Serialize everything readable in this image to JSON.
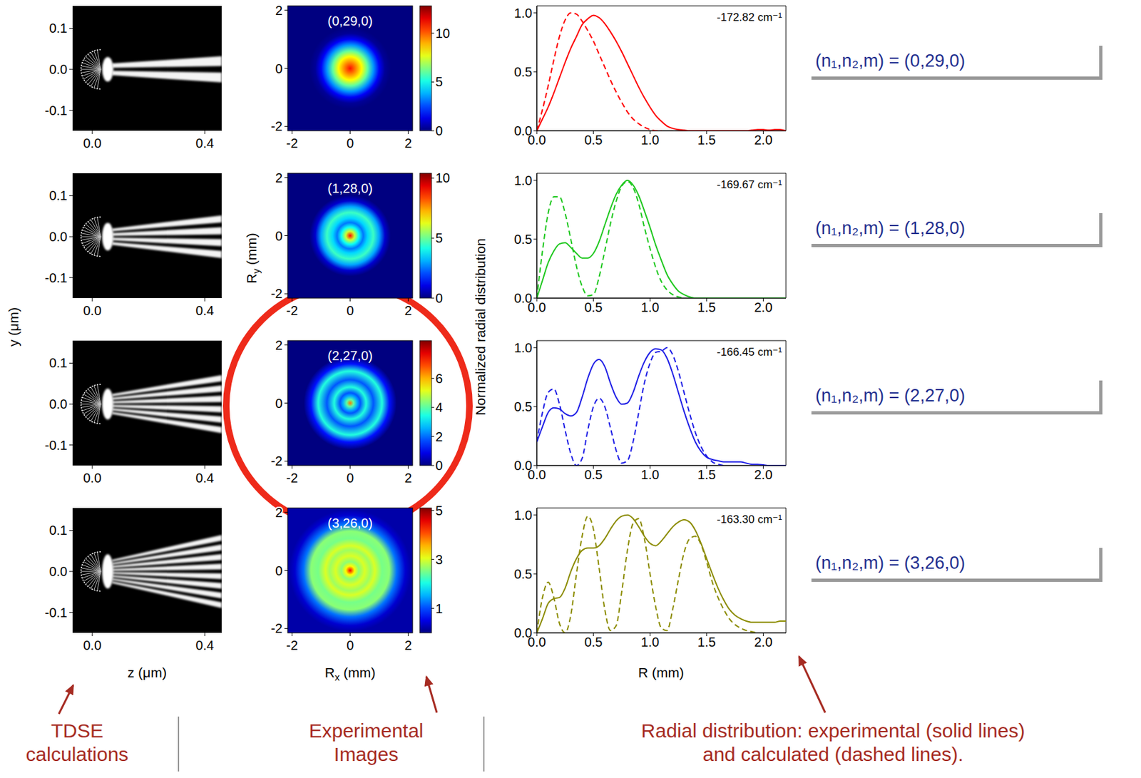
{
  "tdse": {
    "xlabel": "z (μm)",
    "ylabel": "y (μm)",
    "xlim": [
      -0.07,
      0.46
    ],
    "ylim": [
      -0.15,
      0.155
    ],
    "xticks": [
      {
        "value": 0,
        "label": "0.0"
      },
      0.4
    ],
    "yticks": [
      -0.1,
      {
        "value": 0,
        "label": "0.0"
      },
      0.1
    ]
  },
  "images": {
    "type": "heatmap",
    "xlabel": {
      "base": "R",
      "sub": "x",
      "rest": " (mm)"
    },
    "ylabel": {
      "base": "R",
      "sub": "y",
      "rest": " (mm)"
    },
    "xlim": [
      -2.15,
      2.15
    ],
    "ylim": [
      -2.15,
      2.15
    ],
    "xticks": [
      -2,
      0,
      2
    ],
    "yticks": [
      -2,
      0,
      2
    ],
    "panels": [
      {
        "label": "(0,29,0)",
        "colorbar": {
          "range": [
            0,
            12.8
          ],
          "ticks": [
            0,
            5,
            10
          ]
        },
        "radial_profile": {
          "r": [
            0,
            0.2,
            0.4,
            0.6,
            0.8,
            1,
            1.2,
            1.4
          ],
          "values": [
            11,
            9.5,
            8,
            6,
            3.5,
            1.5,
            0.3,
            0
          ]
        }
      },
      {
        "label": "(1,28,0)",
        "colorbar": {
          "range": [
            0,
            10.4
          ],
          "ticks": [
            0,
            5,
            10
          ]
        },
        "radial_profile": {
          "r": [
            0,
            0.15,
            0.3,
            0.45,
            0.6,
            0.8,
            1,
            1.2,
            1.4
          ],
          "values": [
            9,
            6,
            4,
            2.5,
            3.5,
            4.5,
            3,
            0.8,
            0
          ]
        }
      },
      {
        "label": "(2,27,0)",
        "colorbar": {
          "range": [
            0,
            8.6
          ],
          "ticks": [
            0,
            2,
            4,
            6
          ]
        },
        "radial_profile": {
          "r": [
            0,
            0.12,
            0.25,
            0.35,
            0.55,
            0.8,
            1.1,
            1.35,
            1.6
          ],
          "values": [
            6.5,
            4,
            2.5,
            1.8,
            3.5,
            1.8,
            3.5,
            1.2,
            0
          ]
        }
      },
      {
        "label": "(3,26,0)",
        "colorbar": {
          "range": [
            0,
            5.1
          ],
          "ticks": [
            1,
            3,
            5
          ]
        },
        "radial_profile": {
          "r": [
            0,
            0.15,
            0.3,
            0.5,
            0.7,
            0.85,
            1.1,
            1.35,
            1.6,
            1.9,
            2.1
          ],
          "values": [
            4.5,
            3.2,
            2.6,
            3,
            2.7,
            3,
            2.5,
            2.6,
            1.2,
            0.4,
            0.2
          ]
        }
      }
    ]
  },
  "radial": {
    "xlabel": "R (mm)",
    "ylabel": "Normalized radial distribution"
  },
  "chart_data": [
    {
      "type": "line",
      "annotation": "-172.82 cm⁻¹",
      "x": [
        0,
        0.05,
        0.1,
        0.15,
        0.2,
        0.25,
        0.3,
        0.35,
        0.4,
        0.45,
        0.5,
        0.55,
        0.6,
        0.65,
        0.7,
        0.75,
        0.8,
        0.85,
        0.9,
        0.95,
        1,
        1.05,
        1.1,
        1.15,
        1.2,
        1.25,
        1.3,
        1.35,
        1.4,
        1.45,
        1.5,
        1.55,
        1.6,
        1.65,
        1.7,
        1.75,
        1.8,
        1.85,
        1.9,
        1.95,
        2,
        2.05,
        2.1,
        2.15,
        2.2
      ],
      "xlim": [
        0,
        2.2
      ],
      "xticks": [
        {
          "value": 0,
          "label": "0.0"
        },
        0.5,
        {
          "value": 1,
          "label": "1.0"
        },
        1.5,
        {
          "value": 2,
          "label": "2.0"
        }
      ],
      "ylim": [
        0,
        1.06
      ],
      "yticks": [
        {
          "value": 0,
          "label": "0.0"
        },
        0.5,
        {
          "value": 1,
          "label": "1.0"
        }
      ],
      "series": [
        {
          "color": "#ff0000",
          "line_style": "solid",
          "values": [
            0,
            0.1,
            0.2,
            0.32,
            0.45,
            0.58,
            0.7,
            0.8,
            0.9,
            0.95,
            0.98,
            0.96,
            0.91,
            0.84,
            0.76,
            0.67,
            0.57,
            0.47,
            0.37,
            0.28,
            0.2,
            0.13,
            0.08,
            0.04,
            0.02,
            0.01,
            0.005,
            0,
            0,
            0,
            0,
            0,
            0,
            0,
            0,
            0,
            0,
            0,
            0.005,
            0.01,
            0.01,
            0.005,
            0.01,
            0.01,
            0
          ]
        },
        {
          "color": "#ff0000",
          "line_style": "dashed",
          "values": [
            0,
            0.18,
            0.38,
            0.6,
            0.8,
            0.94,
            1,
            0.99,
            0.93,
            0.85,
            0.76,
            0.65,
            0.54,
            0.43,
            0.33,
            0.24,
            0.16,
            0.1,
            0.06,
            0.03,
            0.01,
            0,
            0,
            null,
            null,
            null,
            null,
            null,
            null,
            null,
            null,
            null,
            null,
            null,
            null,
            null,
            null,
            null,
            null,
            null,
            null,
            null,
            null,
            null,
            null
          ]
        }
      ]
    },
    {
      "type": "line",
      "annotation": "-169.67 cm⁻¹",
      "x": [
        0,
        0.05,
        0.1,
        0.15,
        0.2,
        0.25,
        0.3,
        0.35,
        0.4,
        0.45,
        0.5,
        0.55,
        0.6,
        0.65,
        0.7,
        0.75,
        0.8,
        0.85,
        0.9,
        0.95,
        1,
        1.05,
        1.1,
        1.15,
        1.2,
        1.25,
        1.3,
        1.35,
        1.4,
        1.45,
        1.5,
        1.55,
        1.6,
        1.65,
        1.7,
        1.75,
        1.8,
        1.85,
        1.9,
        1.95,
        2,
        2.05,
        2.1,
        2.15,
        2.2
      ],
      "xlim": [
        0,
        2.2
      ],
      "xticks": [
        {
          "value": 0,
          "label": "0.0"
        },
        0.5,
        {
          "value": 1,
          "label": "1.0"
        },
        1.5,
        {
          "value": 2,
          "label": "2.0"
        }
      ],
      "ylim": [
        0,
        1.06
      ],
      "yticks": [
        {
          "value": 0,
          "label": "0.0"
        },
        0.5,
        {
          "value": 1,
          "label": "1.0"
        }
      ],
      "series": [
        {
          "color": "#1fc81f",
          "line_style": "solid",
          "values": [
            0,
            0.15,
            0.3,
            0.4,
            0.46,
            0.47,
            0.43,
            0.38,
            0.34,
            0.34,
            0.38,
            0.48,
            0.62,
            0.76,
            0.88,
            0.96,
            1,
            0.96,
            0.87,
            0.74,
            0.6,
            0.45,
            0.32,
            0.2,
            0.12,
            0.06,
            0.03,
            0.01,
            0,
            0,
            0,
            0,
            0,
            0,
            0,
            0,
            0,
            0,
            0,
            0,
            0,
            0,
            0,
            0,
            0
          ]
        },
        {
          "color": "#1fc81f",
          "line_style": "dashed",
          "values": [
            0,
            0.4,
            0.72,
            0.86,
            0.86,
            0.72,
            0.5,
            0.27,
            0.1,
            0.02,
            0.03,
            0.18,
            0.4,
            0.63,
            0.82,
            0.95,
            0.99,
            0.94,
            0.8,
            0.6,
            0.42,
            0.26,
            0.14,
            0.07,
            0.03,
            0.01,
            0,
            null,
            null,
            null,
            null,
            null,
            null,
            null,
            null,
            null,
            null,
            null,
            null,
            null,
            null,
            null,
            null,
            null,
            null
          ]
        }
      ]
    },
    {
      "type": "line",
      "annotation": "-166.45 cm⁻¹",
      "x": [
        0,
        0.05,
        0.1,
        0.15,
        0.2,
        0.25,
        0.3,
        0.35,
        0.4,
        0.45,
        0.5,
        0.55,
        0.6,
        0.65,
        0.7,
        0.75,
        0.8,
        0.85,
        0.9,
        0.95,
        1,
        1.05,
        1.1,
        1.15,
        1.2,
        1.25,
        1.3,
        1.35,
        1.4,
        1.45,
        1.5,
        1.55,
        1.6,
        1.65,
        1.7,
        1.75,
        1.8,
        1.85,
        1.9,
        1.95,
        2,
        2.05,
        2.1,
        2.15,
        2.2
      ],
      "xlim": [
        0,
        2.2
      ],
      "xticks": [
        {
          "value": 0,
          "label": "0.0"
        },
        0.5,
        {
          "value": 1,
          "label": "1.0"
        },
        1.5,
        {
          "value": 2,
          "label": "2.0"
        }
      ],
      "ylim": [
        0,
        1.06
      ],
      "yticks": [
        {
          "value": 0,
          "label": "0.0"
        },
        0.5,
        {
          "value": 1,
          "label": "1.0"
        }
      ],
      "series": [
        {
          "color": "#1f1fe6",
          "line_style": "solid",
          "values": [
            0.2,
            0.33,
            0.45,
            0.49,
            0.48,
            0.44,
            0.42,
            0.45,
            0.58,
            0.74,
            0.86,
            0.9,
            0.84,
            0.7,
            0.58,
            0.52,
            0.53,
            0.62,
            0.76,
            0.88,
            0.96,
            0.99,
            0.98,
            0.91,
            0.78,
            0.62,
            0.46,
            0.32,
            0.2,
            0.12,
            0.07,
            0.05,
            0.04,
            0.03,
            0.03,
            0.03,
            0.03,
            0.02,
            0.01,
            0.01,
            0.005,
            0,
            0,
            0,
            0
          ]
        },
        {
          "color": "#1f1fe6",
          "line_style": "dashed",
          "values": [
            0.2,
            0.45,
            0.62,
            0.65,
            0.52,
            0.3,
            0.1,
            0,
            0.06,
            0.3,
            0.5,
            0.57,
            0.5,
            0.32,
            0.13,
            0.02,
            0.04,
            0.2,
            0.45,
            0.7,
            0.87,
            0.96,
            0.97,
            1,
            0.94,
            0.8,
            0.62,
            0.44,
            0.28,
            0.16,
            0.08,
            0.03,
            0.01,
            0,
            null,
            null,
            null,
            null,
            null,
            null,
            null,
            null,
            null,
            null,
            null
          ]
        }
      ]
    },
    {
      "type": "line",
      "annotation": "-163.30 cm⁻¹",
      "x": [
        0,
        0.05,
        0.1,
        0.15,
        0.2,
        0.25,
        0.3,
        0.35,
        0.4,
        0.45,
        0.5,
        0.55,
        0.6,
        0.65,
        0.7,
        0.75,
        0.8,
        0.85,
        0.9,
        0.95,
        1,
        1.05,
        1.1,
        1.15,
        1.2,
        1.25,
        1.3,
        1.35,
        1.4,
        1.45,
        1.5,
        1.55,
        1.6,
        1.65,
        1.7,
        1.75,
        1.8,
        1.85,
        1.9,
        1.95,
        2,
        2.05,
        2.1,
        2.15,
        2.2
      ],
      "xlim": [
        0,
        2.2
      ],
      "xticks": [
        {
          "value": 0,
          "label": "0.0"
        },
        0.5,
        {
          "value": 1,
          "label": "1.0"
        },
        1.5,
        {
          "value": 2,
          "label": "2.0"
        }
      ],
      "ylim": [
        0,
        1.06
      ],
      "yticks": [
        {
          "value": 0,
          "label": "0.0"
        },
        0.5,
        {
          "value": 1,
          "label": "1.0"
        }
      ],
      "series": [
        {
          "color": "#8c8c00",
          "line_style": "solid",
          "values": [
            0,
            0.12,
            0.25,
            0.29,
            0.3,
            0.38,
            0.52,
            0.63,
            0.7,
            0.72,
            0.72,
            0.74,
            0.8,
            0.88,
            0.95,
            0.99,
            1,
            0.97,
            0.9,
            0.82,
            0.76,
            0.74,
            0.78,
            0.84,
            0.9,
            0.94,
            0.96,
            0.94,
            0.87,
            0.76,
            0.63,
            0.5,
            0.38,
            0.28,
            0.2,
            0.15,
            0.12,
            0.1,
            0.09,
            0.09,
            0.09,
            0.09,
            0.09,
            0.1,
            0.1
          ]
        },
        {
          "color": "#8c8c00",
          "line_style": "dashed",
          "values": [
            0,
            0.3,
            0.43,
            0.3,
            0.08,
            0,
            0.15,
            0.5,
            0.82,
            0.99,
            0.88,
            0.55,
            0.2,
            0.02,
            0.06,
            0.35,
            0.7,
            0.93,
            0.97,
            0.8,
            0.5,
            0.22,
            0.04,
            0.02,
            0.2,
            0.45,
            0.68,
            0.8,
            0.82,
            0.75,
            0.6,
            0.43,
            0.3,
            0.2,
            0.12,
            0.07,
            0.04,
            0.02,
            0.01,
            0,
            null,
            null,
            null,
            null,
            null
          ]
        }
      ]
    }
  ],
  "states": [
    "(n₁,n₂,m) = (0,29,0)",
    "(n₁,n₂,m) = (1,28,0)",
    "(n₁,n₂,m) = (2,27,0)",
    "(n₁,n₂,m) = (3,26,0)"
  ],
  "captions": [
    {
      "lines": [
        "TDSE",
        "calculations"
      ]
    },
    {
      "lines": [
        "Experimental",
        "Images"
      ]
    },
    {
      "lines": [
        "Radial distribution: experimental (solid lines)",
        "and calculated (dashed lines)."
      ]
    }
  ]
}
